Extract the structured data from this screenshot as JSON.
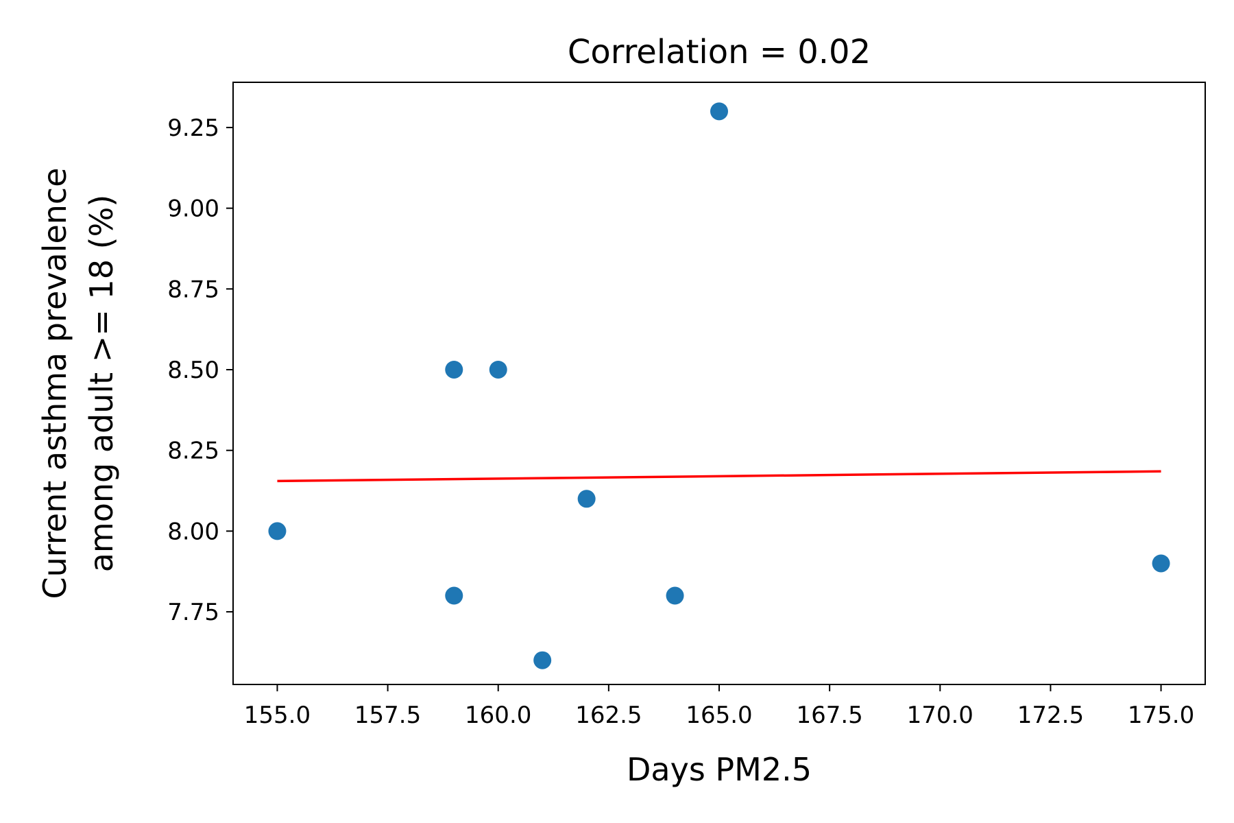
{
  "chart_data": {
    "type": "scatter",
    "title": "Correlation = 0.02",
    "xlabel": "Days PM2.5",
    "ylabel_lines": [
      "Current asthma prevalence",
      "among adult >= 18 (%)"
    ],
    "xlim": [
      154,
      176
    ],
    "ylim": [
      7.525,
      9.39
    ],
    "xticks": [
      155.0,
      157.5,
      160.0,
      162.5,
      165.0,
      167.5,
      170.0,
      172.5,
      175.0
    ],
    "xtick_labels": [
      "155.0",
      "157.5",
      "160.0",
      "162.5",
      "165.0",
      "167.5",
      "170.0",
      "172.5",
      "175.0"
    ],
    "yticks": [
      7.75,
      8.0,
      8.25,
      8.5,
      8.75,
      9.0,
      9.25
    ],
    "ytick_labels": [
      "7.75",
      "8.00",
      "8.25",
      "8.50",
      "8.75",
      "9.00",
      "9.25"
    ],
    "points": [
      {
        "x": 155,
        "y": 8.0
      },
      {
        "x": 159,
        "y": 8.5
      },
      {
        "x": 160,
        "y": 8.5
      },
      {
        "x": 159,
        "y": 7.8
      },
      {
        "x": 161,
        "y": 7.6
      },
      {
        "x": 162,
        "y": 8.1
      },
      {
        "x": 164,
        "y": 7.8
      },
      {
        "x": 165,
        "y": 9.3
      },
      {
        "x": 175,
        "y": 7.9
      }
    ],
    "trendline": {
      "x": [
        155,
        175
      ],
      "y": [
        8.155,
        8.185
      ]
    },
    "grid": false,
    "colors": {
      "points": "#1f77b4",
      "trendline": "#ff0000",
      "axes": "#000000"
    }
  }
}
